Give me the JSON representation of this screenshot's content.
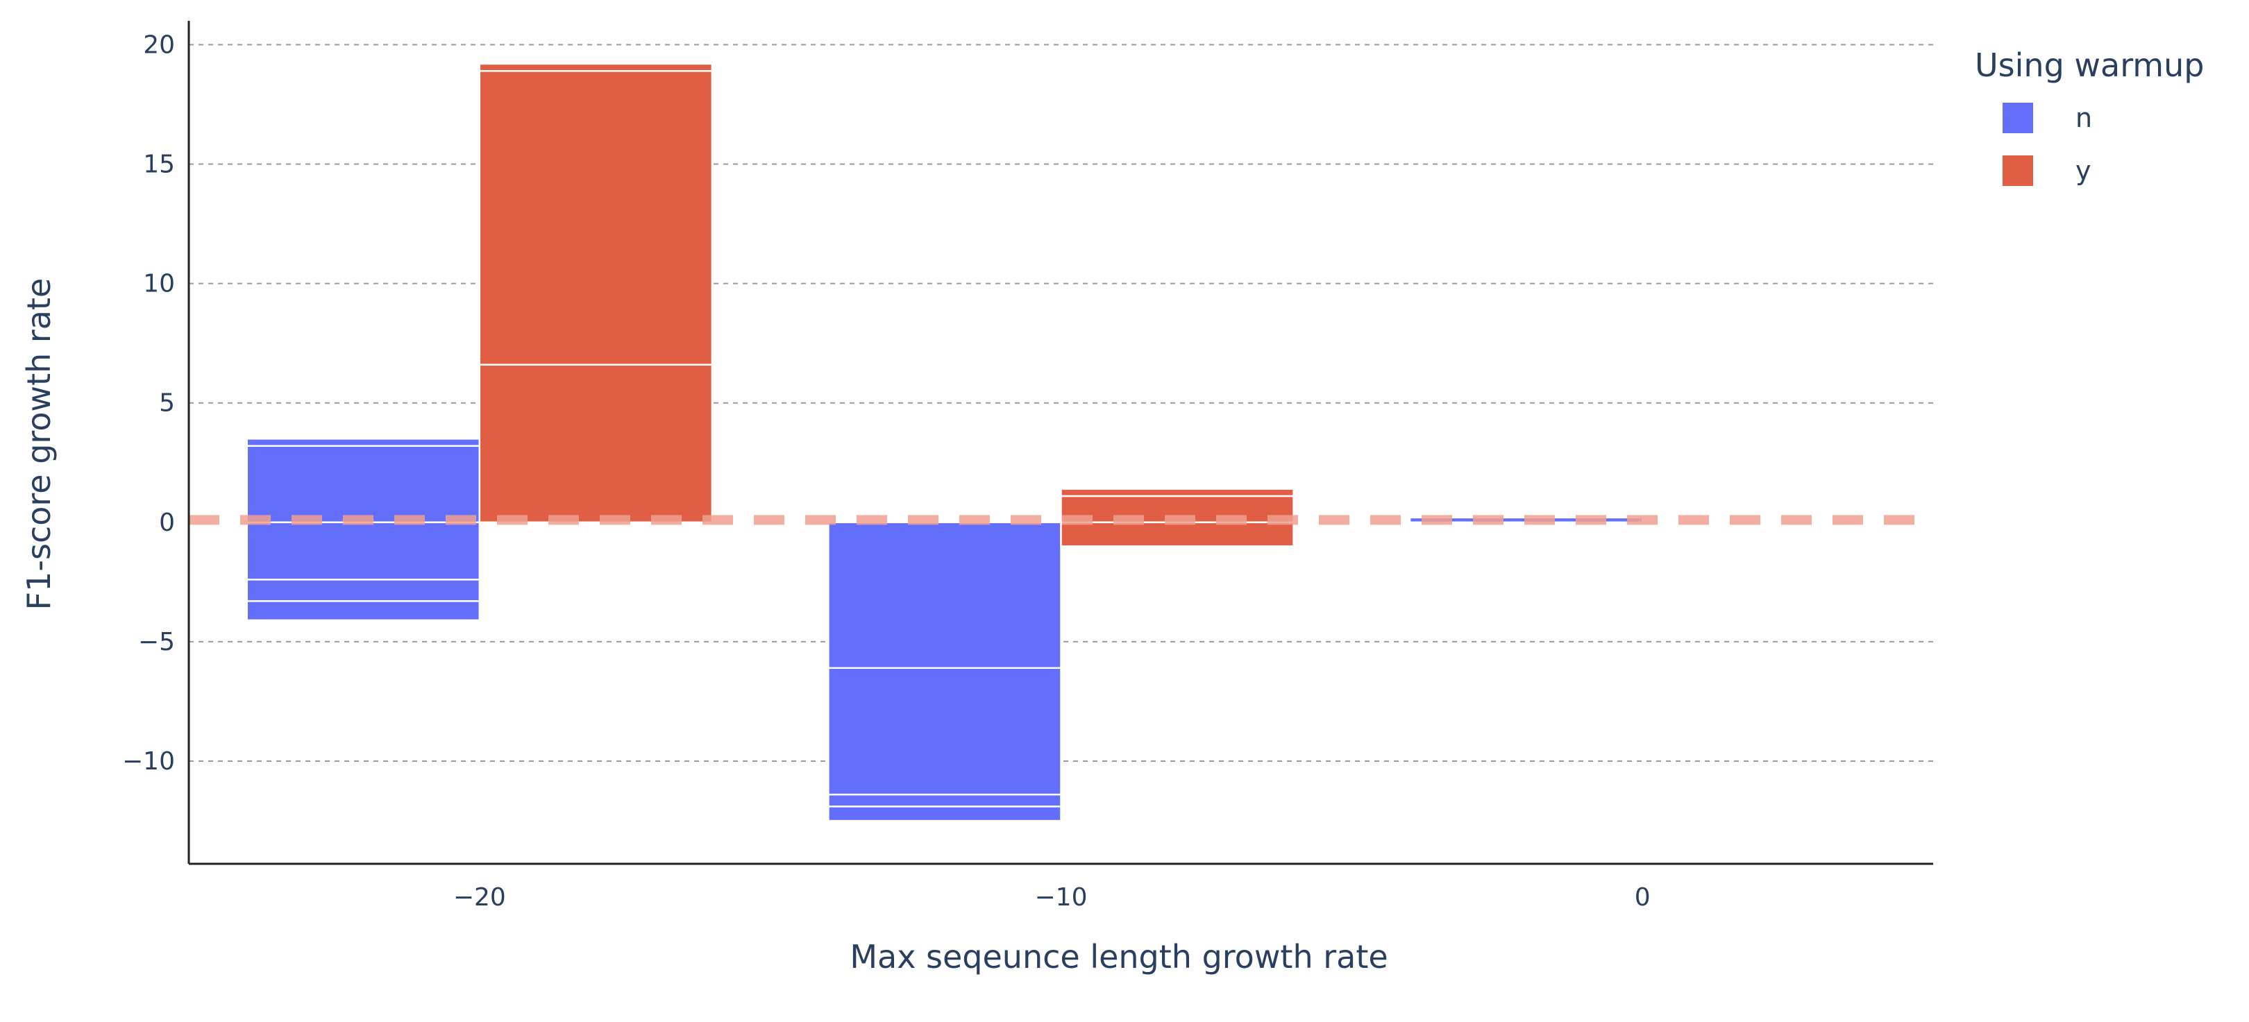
{
  "chart_data": {
    "type": "bar",
    "barmode": "group",
    "xlabel": "Max seqeunce length growth rate",
    "ylabel": "F1-score growth rate",
    "xlim": [
      -25,
      5
    ],
    "ylim": [
      -14.3,
      21
    ],
    "xticks": [
      -20,
      -10,
      0
    ],
    "xtick_labels": [
      "−20",
      "−10",
      "0"
    ],
    "yticks": [
      -10,
      -5,
      0,
      5,
      10,
      15,
      20
    ],
    "ytick_labels": [
      "−10",
      "−5",
      "0",
      "5",
      "10",
      "15",
      "20"
    ],
    "grid": "y-dashed",
    "reference_line": {
      "y": 0.1,
      "style": "dashed",
      "color": "#f0a090"
    },
    "legend": {
      "title": "Using warmup",
      "position": "top-right",
      "entries": [
        "n",
        "y"
      ]
    },
    "series": [
      {
        "name": "n",
        "color": "#636efa",
        "segments": [
          {
            "x": -20,
            "values": [
              3.2,
              0.3,
              -2.4,
              -0.9,
              -0.8
            ]
          },
          {
            "x": -10,
            "values": [
              -6.1,
              -5.3,
              -0.5,
              -0.6
            ]
          },
          {
            "x": 0,
            "values": [
              0.2
            ]
          }
        ]
      },
      {
        "name": "y",
        "color": "#e05f44",
        "segments": [
          {
            "x": -20,
            "values": [
              6.6,
              12.3,
              0.3
            ]
          },
          {
            "x": -10,
            "values": [
              1.1,
              0.3,
              -1.0
            ]
          },
          {
            "x": 0,
            "values": []
          }
        ]
      }
    ]
  }
}
